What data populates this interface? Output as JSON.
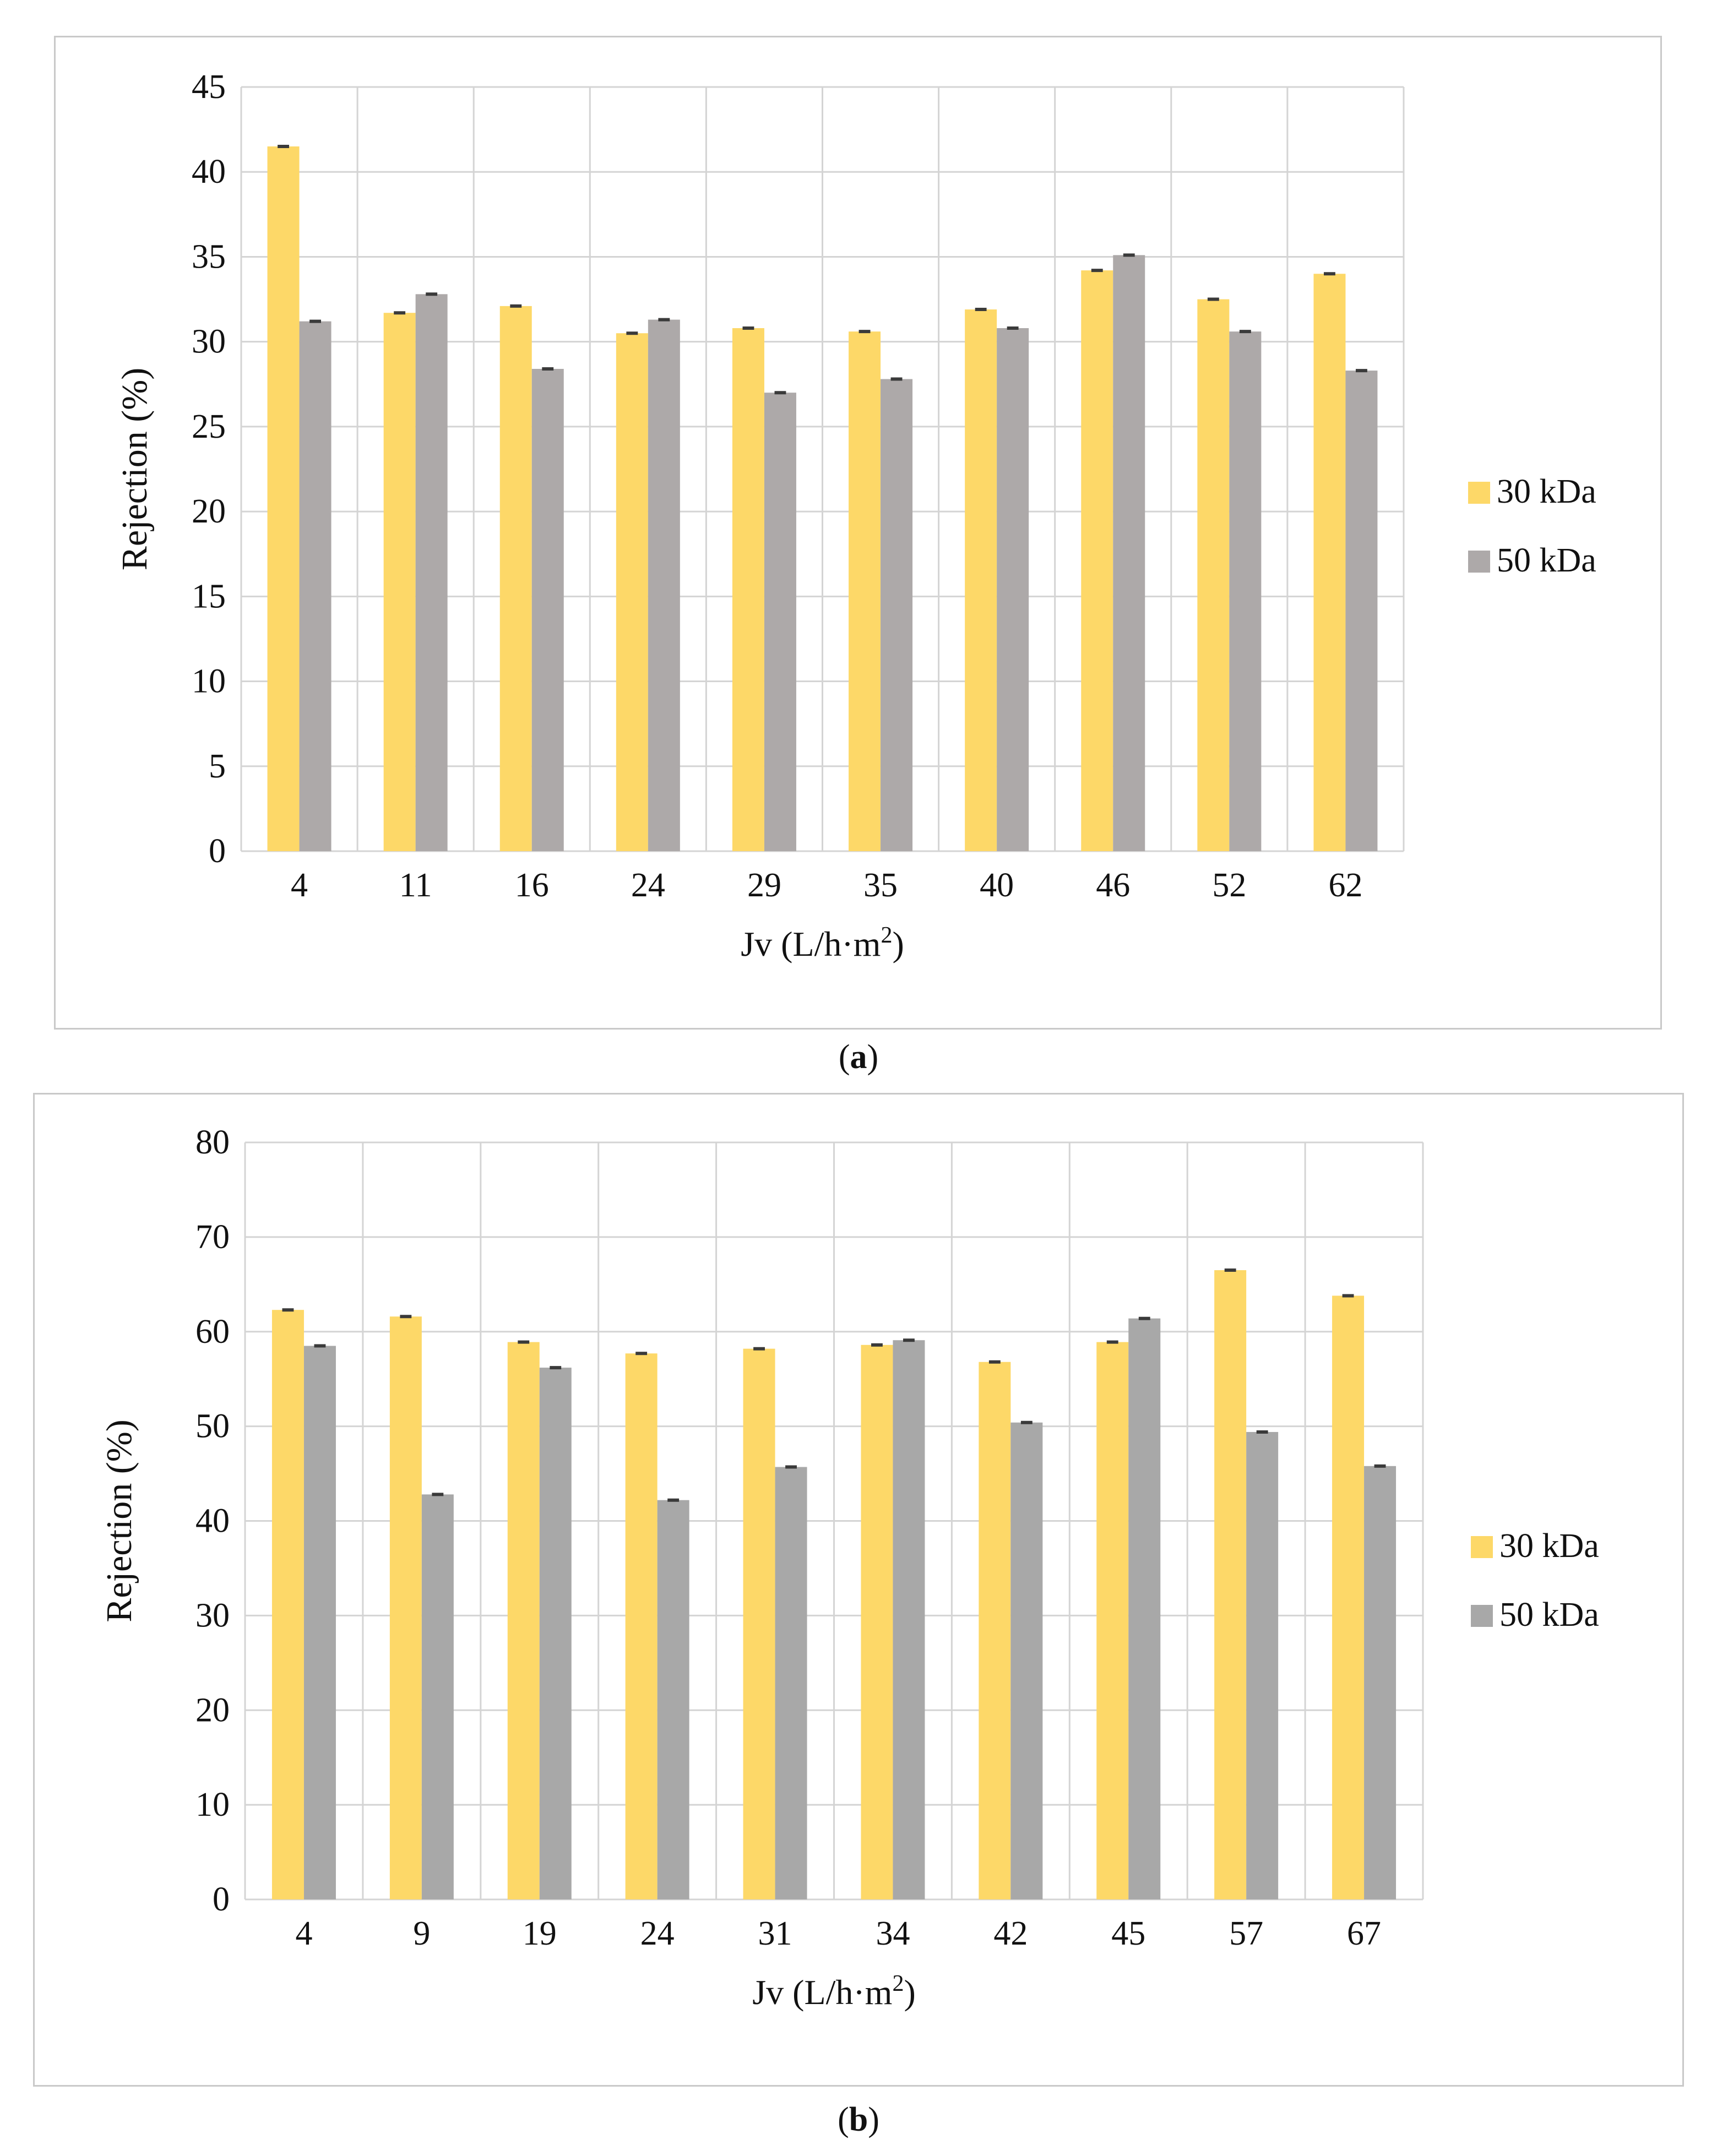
{
  "chart_data": [
    {
      "type": "bar",
      "panel_label": "a",
      "categories": [
        "4",
        "11",
        "16",
        "24",
        "29",
        "35",
        "40",
        "46",
        "52",
        "62"
      ],
      "series": [
        {
          "name": "30 kDa",
          "color": "#fdd868",
          "values": [
            41.5,
            31.7,
            32.1,
            30.5,
            30.8,
            30.6,
            31.9,
            34.2,
            32.5,
            34.0
          ]
        },
        {
          "name": "50 kDa",
          "color": "#ada9a9",
          "values": [
            31.2,
            32.8,
            28.4,
            31.3,
            27.0,
            27.8,
            30.8,
            35.1,
            30.6,
            28.3
          ]
        }
      ],
      "xlabel": "Jv (L/h·m",
      "xlabel_sup": "2",
      "xlabel_end": ")",
      "ylabel": "Rejection (%)",
      "ylim": [
        0,
        45
      ],
      "yticks": [
        0,
        5,
        10,
        15,
        20,
        25,
        30,
        35,
        40,
        45
      ],
      "grid": true,
      "legend": "right"
    },
    {
      "type": "bar",
      "panel_label": "b",
      "categories": [
        "4",
        "9",
        "19",
        "24",
        "31",
        "34",
        "42",
        "45",
        "57",
        "67"
      ],
      "series": [
        {
          "name": "30 kDa",
          "color": "#fdd868",
          "values": [
            62.3,
            61.6,
            58.9,
            57.7,
            58.2,
            58.6,
            56.8,
            58.9,
            66.5,
            63.8
          ]
        },
        {
          "name": "50 kDa",
          "color": "#a8a8a8",
          "values": [
            58.5,
            42.8,
            56.2,
            42.2,
            45.7,
            59.1,
            50.4,
            61.4,
            49.4,
            45.8
          ]
        }
      ],
      "xlabel": "Jv (L/h·m",
      "xlabel_sup": "2",
      "xlabel_end": ")",
      "ylabel": "Rejection (%)",
      "ylim": [
        0,
        80
      ],
      "yticks": [
        0,
        10,
        20,
        30,
        40,
        50,
        60,
        70,
        80
      ],
      "grid": true,
      "legend": "right"
    }
  ],
  "captions": {
    "a": {
      "open": "(",
      "label": "a",
      "close": ")"
    },
    "b": {
      "open": "(",
      "label": "b",
      "close": ")"
    }
  }
}
